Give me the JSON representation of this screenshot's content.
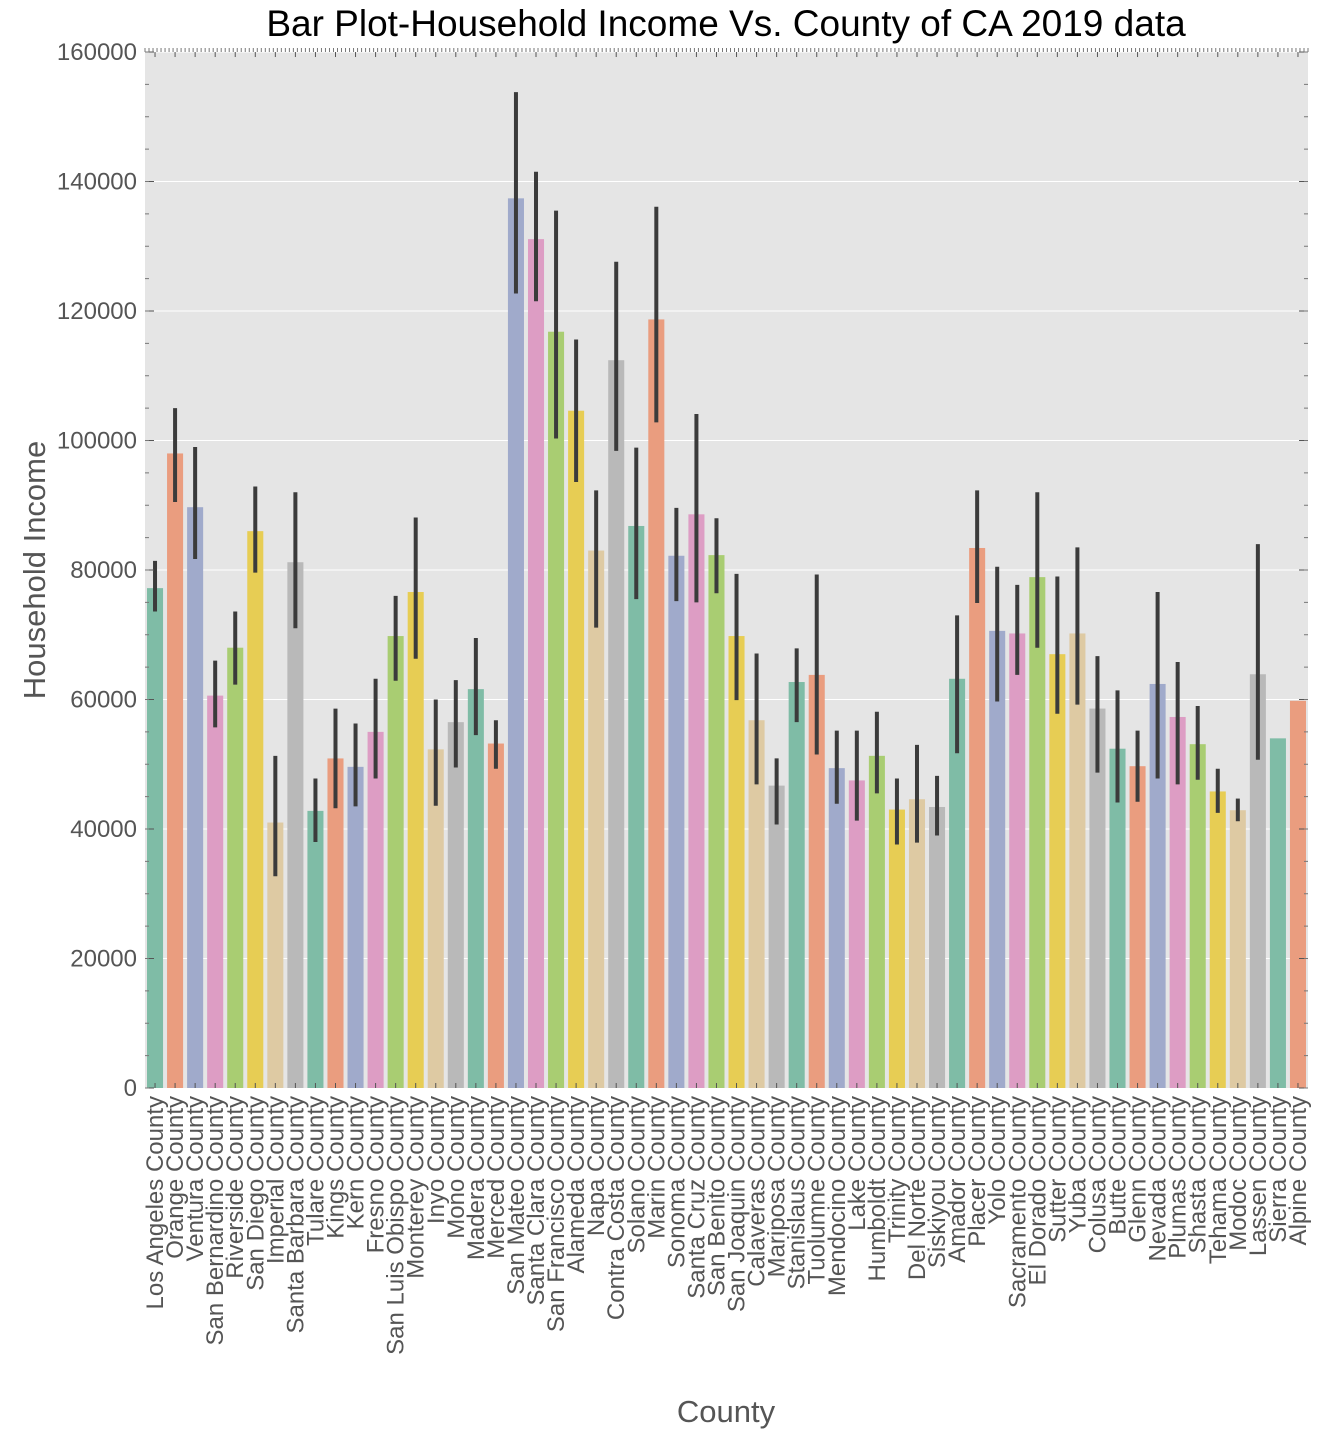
{
  "chart_data": {
    "type": "bar",
    "title": "Bar Plot-Household Income Vs. County of CA 2019 data",
    "xlabel": "County",
    "ylabel": "Household Income",
    "ylim": [
      0,
      160000
    ],
    "yticks": [
      0,
      20000,
      40000,
      60000,
      80000,
      100000,
      120000,
      140000,
      160000
    ],
    "grid": true,
    "background": "#e5e5e5",
    "error_bar_color": "#3b3b3b",
    "palette": [
      "#7fbca6",
      "#ea9d7f",
      "#a0aacb",
      "#dd9dc4",
      "#a9cd72",
      "#e7cd54",
      "#decaa3",
      "#b9b9b9"
    ],
    "categories": [
      "Los Angeles County",
      "Orange County",
      "Ventura County",
      "San Bernardino County",
      "Riverside County",
      "San Diego County",
      "Imperial County",
      "Santa Barbara County",
      "Tulare County",
      "Kings County",
      "Kern County",
      "Fresno County",
      "San Luis Obispo County",
      "Monterey County",
      "Inyo County",
      "Mono County",
      "Madera County",
      "Merced County",
      "San Mateo County",
      "Santa Clara County",
      "San Francisco County",
      "Alameda County",
      "Napa County",
      "Contra Costa County",
      "Solano County",
      "Marin County",
      "Sonoma County",
      "Santa Cruz County",
      "San Benito County",
      "San Joaquin County",
      "Calaveras County",
      "Mariposa County",
      "Stanislaus County",
      "Tuolumne County",
      "Mendocino County",
      "Lake County",
      "Humboldt County",
      "Trinity County",
      "Del Norte County",
      "Siskiyou County",
      "Amador County",
      "Placer County",
      "Yolo County",
      "Sacramento County",
      "El Dorado County",
      "Sutter County",
      "Yuba County",
      "Colusa County",
      "Butte County",
      "Glenn County",
      "Nevada County",
      "Plumas County",
      "Shasta County",
      "Tehama County",
      "Modoc County",
      "Lassen County",
      "Sierra County",
      "Alpine County"
    ],
    "values": [
      77200,
      98000,
      89700,
      60600,
      68000,
      86000,
      41000,
      81200,
      42800,
      50900,
      49600,
      55000,
      69800,
      76600,
      52300,
      56500,
      61600,
      53200,
      137400,
      131100,
      116800,
      104600,
      83000,
      112400,
      86800,
      118700,
      82200,
      88600,
      82300,
      69800,
      56800,
      46700,
      62700,
      63800,
      49400,
      47500,
      51300,
      43000,
      44600,
      43400,
      63200,
      83400,
      70600,
      70200,
      78900,
      67000,
      70200,
      58600,
      52400,
      49700,
      62400,
      57300,
      53100,
      45800,
      42900,
      63900,
      54000,
      59800
    ],
    "error_low": [
      73600,
      90500,
      81700,
      55700,
      62300,
      79600,
      32700,
      71000,
      38000,
      43200,
      43500,
      47800,
      62900,
      66300,
      43600,
      49500,
      54500,
      49300,
      122700,
      121500,
      100300,
      93600,
      71100,
      98400,
      75500,
      102800,
      75200,
      75000,
      76400,
      59900,
      46900,
      40700,
      56500,
      51500,
      43900,
      41300,
      45500,
      37600,
      37900,
      39000,
      51700,
      74900,
      59700,
      63800,
      68000,
      57800,
      59200,
      48700,
      44100,
      44200,
      47800,
      46900,
      47600,
      42500,
      41200,
      50700,
      null,
      null
    ],
    "error_high": [
      81400,
      105000,
      99000,
      66000,
      73600,
      92900,
      51300,
      92000,
      47800,
      58600,
      56300,
      63200,
      76000,
      88100,
      60000,
      63000,
      69500,
      56800,
      153800,
      141500,
      135500,
      115600,
      92300,
      127600,
      98900,
      136100,
      89600,
      104100,
      88000,
      79400,
      67100,
      50900,
      67900,
      79300,
      55200,
      55200,
      58100,
      47800,
      53000,
      48200,
      73000,
      92300,
      80500,
      77700,
      92000,
      79000,
      83500,
      66700,
      61400,
      55200,
      76600,
      65800,
      59000,
      49300,
      44700,
      84000,
      null,
      null
    ]
  }
}
